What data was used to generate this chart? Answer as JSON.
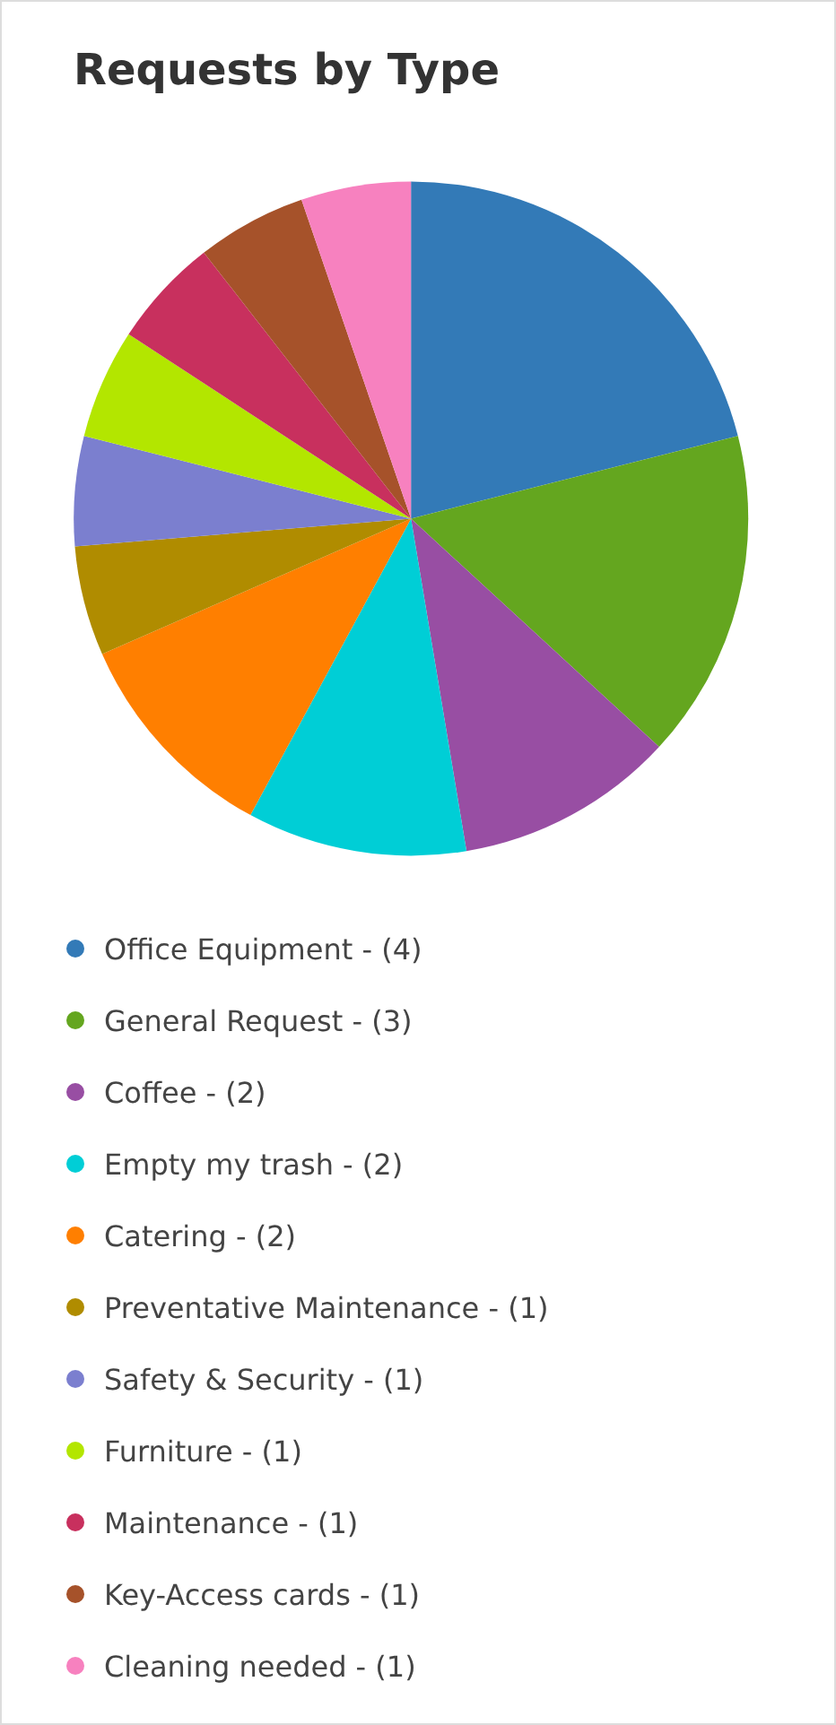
{
  "chart_data": {
    "type": "pie",
    "title": "Requests by Type",
    "categories": [
      "Office Equipment - (4)",
      "General Request - (3)",
      "Coffee - (2)",
      "Empty my trash - (2)",
      "Catering - (2)",
      "Preventative Maintenance - (1)",
      "Safety & Security - (1)",
      "Furniture - (1)",
      "Maintenance - (1)",
      "Key-Access cards - (1)",
      "Cleaning needed - (1)"
    ],
    "values": [
      4,
      3,
      2,
      2,
      2,
      1,
      1,
      1,
      1,
      1,
      1
    ],
    "colors": [
      "#337ab7",
      "#64a61f",
      "#984ea3",
      "#00ced6",
      "#ff7f00",
      "#b08c00",
      "#7b7fcf",
      "#b3e600",
      "#c8305e",
      "#a6522a",
      "#f781bf"
    ],
    "legend": "bottom"
  }
}
